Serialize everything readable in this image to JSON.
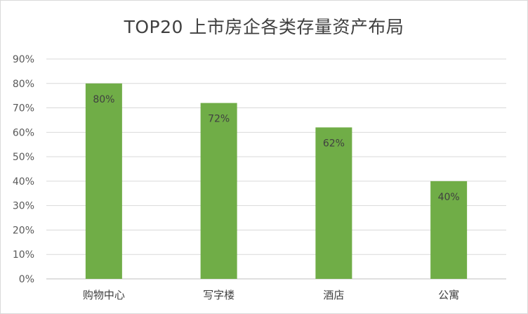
{
  "chart_data": {
    "type": "bar",
    "title": "TOP20 上市房企各类存量资产布局",
    "categories": [
      "购物中心",
      "写字楼",
      "酒店",
      "公寓"
    ],
    "values": [
      80,
      72,
      62,
      40
    ],
    "data_labels": [
      "80%",
      "72%",
      "62%",
      "40%"
    ],
    "y_ticks": [
      0,
      10,
      20,
      30,
      40,
      50,
      60,
      70,
      80,
      90
    ],
    "y_tick_labels": [
      "0%",
      "10%",
      "20%",
      "30%",
      "40%",
      "50%",
      "60%",
      "70%",
      "80%",
      "90%"
    ],
    "ylim": [
      0,
      90
    ],
    "grid": true,
    "legend": "none",
    "colors": {
      "bar": "#70ad47",
      "grid": "#d9d9d9",
      "axis": "#bfbfbf"
    }
  }
}
